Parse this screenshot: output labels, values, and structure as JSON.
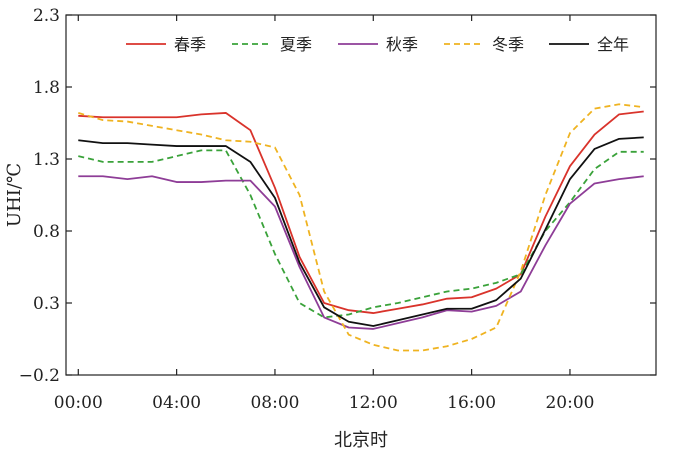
{
  "chart_data": {
    "type": "line",
    "title": "",
    "xlabel": "北京时",
    "ylabel": "UHI/℃",
    "ylim": [
      -0.2,
      2.3
    ],
    "yticks": [
      "−0.2",
      "0.3",
      "0.8",
      "1.3",
      "1.8",
      "2.3"
    ],
    "ytick_values": [
      -0.2,
      0.3,
      0.8,
      1.3,
      1.8,
      2.3
    ],
    "xlim": [
      -0.5,
      23.5
    ],
    "xticks": [
      "00:00",
      "04:00",
      "08:00",
      "12:00",
      "16:00",
      "20:00"
    ],
    "xtick_values": [
      0,
      4,
      8,
      12,
      16,
      20
    ],
    "grid": false,
    "legend_position": "top",
    "x": [
      0,
      1,
      2,
      3,
      4,
      5,
      6,
      7,
      8,
      9,
      10,
      11,
      12,
      13,
      14,
      15,
      16,
      17,
      18,
      19,
      20,
      21,
      22,
      23
    ],
    "series": [
      {
        "name": "春季",
        "color": "#d9332b",
        "dash": "solid",
        "values": [
          1.6,
          1.59,
          1.59,
          1.59,
          1.59,
          1.61,
          1.62,
          1.5,
          1.1,
          0.62,
          0.3,
          0.25,
          0.23,
          0.26,
          0.29,
          0.33,
          0.34,
          0.4,
          0.5,
          0.9,
          1.25,
          1.47,
          1.61,
          1.63
        ]
      },
      {
        "name": "夏季",
        "color": "#3aa23a",
        "dash": "dashed",
        "values": [
          1.32,
          1.28,
          1.28,
          1.28,
          1.32,
          1.36,
          1.36,
          1.05,
          0.64,
          0.3,
          0.2,
          0.22,
          0.27,
          0.3,
          0.34,
          0.38,
          0.4,
          0.44,
          0.5,
          0.8,
          1.0,
          1.23,
          1.35,
          1.35
        ]
      },
      {
        "name": "秋季",
        "color": "#8e3d97",
        "dash": "solid",
        "values": [
          1.18,
          1.18,
          1.16,
          1.18,
          1.14,
          1.14,
          1.15,
          1.15,
          0.97,
          0.55,
          0.2,
          0.13,
          0.12,
          0.16,
          0.2,
          0.25,
          0.24,
          0.28,
          0.38,
          0.7,
          0.99,
          1.13,
          1.16,
          1.18
        ]
      },
      {
        "name": "冬季",
        "color": "#efb321",
        "dash": "dashed",
        "values": [
          1.62,
          1.57,
          1.56,
          1.53,
          1.5,
          1.47,
          1.43,
          1.42,
          1.38,
          1.05,
          0.38,
          0.08,
          0.01,
          -0.03,
          -0.03,
          0.0,
          0.05,
          0.13,
          0.52,
          1.05,
          1.48,
          1.65,
          1.68,
          1.66
        ]
      },
      {
        "name": "全年",
        "color": "#111111",
        "dash": "solid",
        "values": [
          1.43,
          1.41,
          1.41,
          1.4,
          1.39,
          1.39,
          1.39,
          1.28,
          1.03,
          0.58,
          0.27,
          0.17,
          0.14,
          0.18,
          0.22,
          0.26,
          0.26,
          0.32,
          0.47,
          0.81,
          1.16,
          1.37,
          1.44,
          1.45
        ]
      }
    ]
  }
}
